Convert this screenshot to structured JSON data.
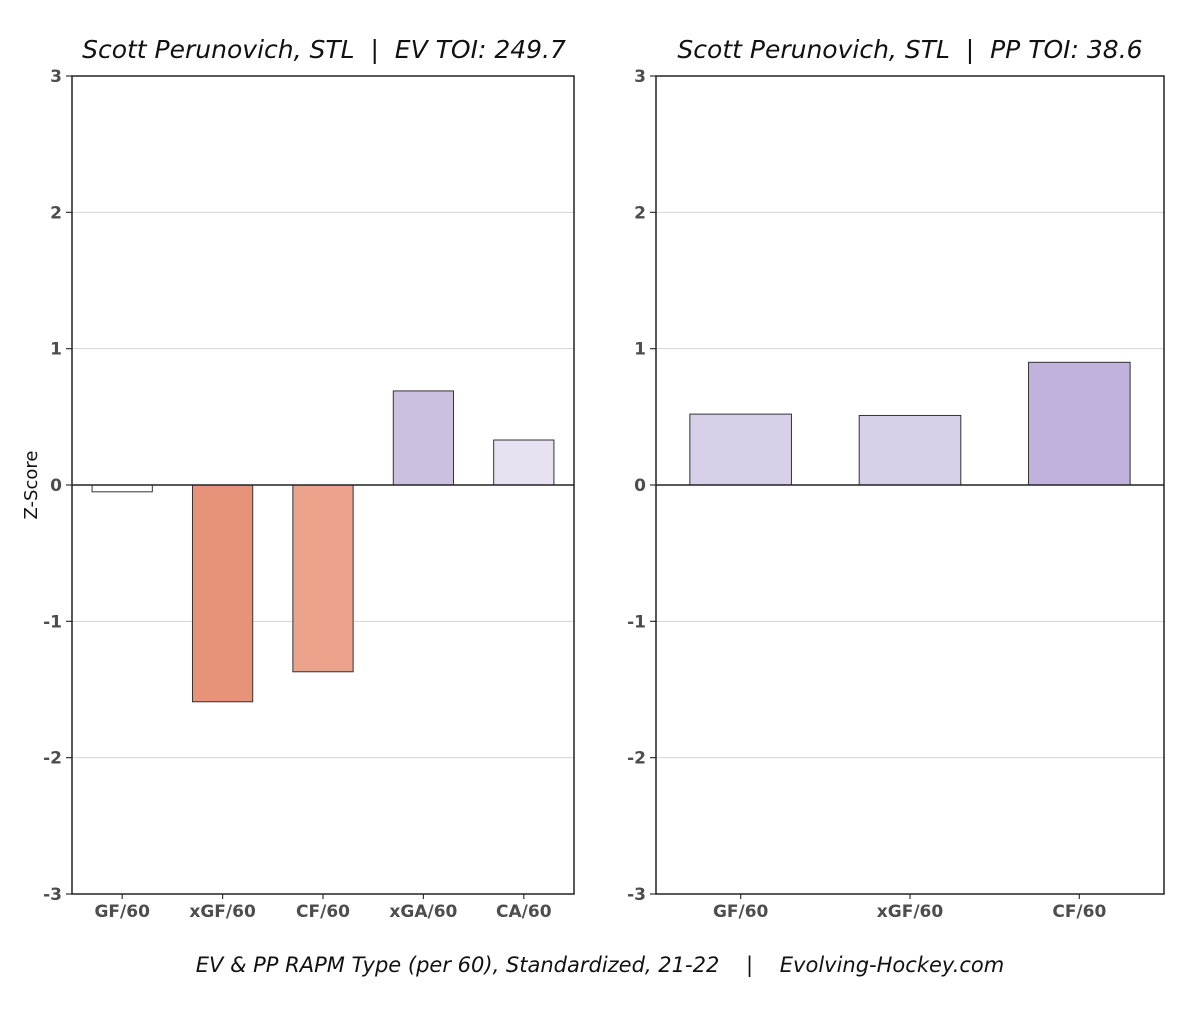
{
  "chart_data": [
    {
      "type": "bar",
      "title": "Scott Perunovich, STL  |  EV TOI: 249.7",
      "ylabel": "Z-Score",
      "xlabel": "",
      "ylim": [
        -3,
        3
      ],
      "yticks": [
        "-3",
        "-2",
        "-1",
        "0",
        "1",
        "2",
        "3"
      ],
      "grid": true,
      "categories": [
        "GF/60",
        "xGF/60",
        "CF/60",
        "xGA/60",
        "CA/60"
      ],
      "values": [
        -0.05,
        -1.59,
        -1.37,
        0.69,
        0.33
      ],
      "colors": [
        "#ffffff",
        "#e7937a",
        "#eba38c",
        "#cbc0e0",
        "#e8e1f1"
      ]
    },
    {
      "type": "bar",
      "title": "Scott Perunovich, STL  |  PP TOI: 38.6",
      "ylabel": "",
      "xlabel": "",
      "ylim": [
        -3,
        3
      ],
      "yticks": [
        "-3",
        "-2",
        "-1",
        "0",
        "1",
        "2",
        "3"
      ],
      "grid": true,
      "categories": [
        "GF/60",
        "xGF/60",
        "CF/60"
      ],
      "values": [
        0.52,
        0.51,
        0.9
      ],
      "colors": [
        "#d8d0e8",
        "#d8d0e8",
        "#c0b2dc"
      ]
    }
  ],
  "caption": "EV & PP RAPM Type (per 60), Standardized, 21-22    |    Evolving-Hockey.com"
}
